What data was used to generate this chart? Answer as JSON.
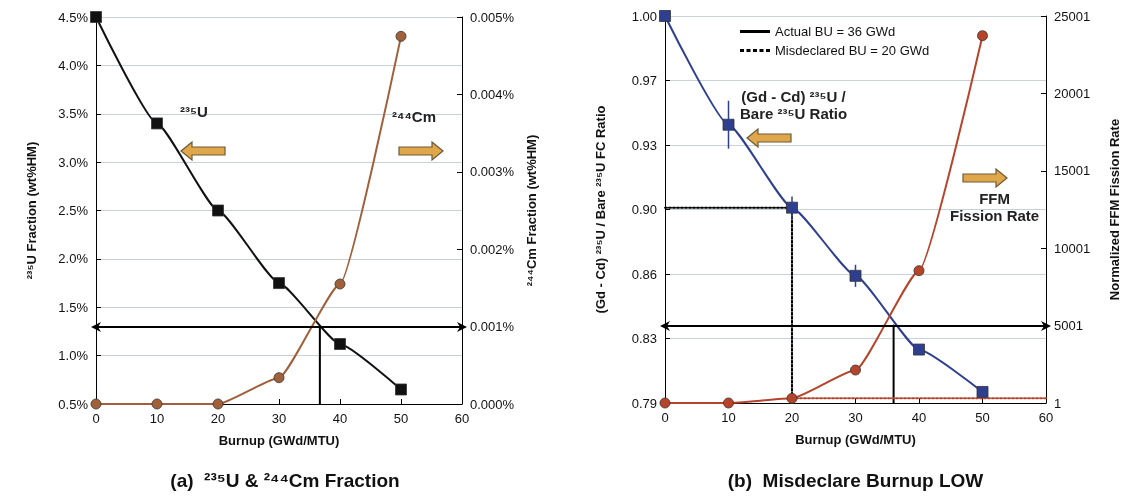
{
  "chart_data": [
    {
      "type": "line",
      "title": "(a)  ²³⁵U & ²⁴⁴Cm Fraction",
      "xlabel": "Burnup (GWd/MTU)",
      "ylabel": "²³⁵U Fraction (wt%HM)",
      "y2label": "²⁴⁴Cm Fraction (wt%HM)",
      "annotations": [
        "²³⁵U",
        "²⁴⁴Cm"
      ],
      "x": [
        0,
        10,
        20,
        30,
        40,
        50
      ],
      "xlim": [
        0,
        60
      ],
      "xticks": [
        0,
        10,
        20,
        30,
        40,
        50,
        60
      ],
      "ylim": [
        0.5,
        4.5
      ],
      "yticks": [
        {
          "value": 0.5,
          "label": "0.5%"
        },
        {
          "value": 1,
          "label": "1.0%"
        },
        {
          "value": 1.5,
          "label": "1.5%"
        },
        {
          "value": 2,
          "label": "2.0%"
        },
        {
          "value": 2.5,
          "label": "2.5%"
        },
        {
          "value": 3,
          "label": "3.0%"
        },
        {
          "value": 3.5,
          "label": "3.5%"
        },
        {
          "value": 4,
          "label": "4.0%"
        },
        {
          "value": 4.5,
          "label": "4.5%"
        }
      ],
      "y2lim": [
        0,
        0.005
      ],
      "y2ticks": [
        {
          "value": 0,
          "label": "0.000%"
        },
        {
          "value": 0.001,
          "label": "0.001%"
        },
        {
          "value": 0.002,
          "label": "0.002%"
        },
        {
          "value": 0.003,
          "label": "0.003%"
        },
        {
          "value": 0.004,
          "label": "0.004%"
        },
        {
          "value": 0.005,
          "label": "0.005%"
        }
      ],
      "grid": "y",
      "legend": false,
      "series": [
        {
          "color": "#111111",
          "marker": "square",
          "values": [
            4.5,
            3.4,
            2.5,
            1.75,
            1.12,
            0.65
          ]
        },
        {
          "color": "#a0603a",
          "marker": "circle",
          "axis": "y2",
          "values": [
            0,
            0,
            0,
            0.00034,
            0.00155,
            0.00475
          ]
        },
        {
          "color": "#000000",
          "marker": "none",
          "axis": "y2",
          "x": [
            36.7,
            36.7
          ],
          "values": [
            0,
            0.001
          ]
        }
      ],
      "ref_lines": [
        {
          "axis": "y2",
          "value": 0.001,
          "color": "#000000"
        }
      ]
    },
    {
      "type": "line",
      "title": "(b)  Misdeclare Burnup LOW",
      "xlabel": "Burnup (GWd/MTU)",
      "ylabel": "(Gd - Cd) ²³⁵U / Bare ²³⁵U FC Ratio",
      "y2label": "Normalized FFM Fission Rate",
      "annotations": [
        "(Gd - Cd) ²³⁵U /\nBare ²³⁵U Ratio",
        "FFM\nFission Rate"
      ],
      "x": [
        0,
        10,
        20,
        30,
        40,
        50
      ],
      "xlim": [
        0,
        60
      ],
      "xticks": [
        0,
        10,
        20,
        30,
        40,
        50,
        60
      ],
      "ylim": [
        0.79,
        1.0
      ],
      "yticks": [
        0.79,
        {
          "value": 0.825,
          "label": "0.83"
        },
        0.86,
        {
          "value": 0.895,
          "label": "0.90"
        },
        0.93,
        {
          "value": 0.965,
          "label": "0.97"
        },
        {
          "value": 1.0,
          "label": "1.00"
        }
      ],
      "y2lim": [
        1,
        25001
      ],
      "y2ticks": [
        1,
        5001,
        10001,
        15001,
        20001,
        25001
      ],
      "grid": "y",
      "legend": "top",
      "series": [
        {
          "color": "#2e3f8f",
          "marker": "square",
          "values": [
            1.0,
            0.941,
            0.896,
            0.859,
            0.819,
            0.796
          ],
          "errors": [
            null,
            0.013,
            0.006,
            0.006,
            0.003,
            null
          ]
        },
        {
          "color": "#b5442a",
          "marker": "circle",
          "axis": "y2",
          "values": [
            1,
            1,
            300,
            2130,
            8550,
            23730
          ]
        },
        {
          "name": "Actual BU = 36 GWd",
          "color": "#000000",
          "marker": "none",
          "line_style": "solid",
          "axis": "y2",
          "x": [
            36,
            36
          ],
          "values": [
            1,
            5001
          ]
        },
        {
          "name": "Misdeclared BU = 20 GWd",
          "color": "#000000",
          "marker": "none",
          "line_style": "dotted",
          "x": [
            0,
            20,
            20
          ],
          "values": [
            0.896,
            0.896,
            0.79
          ]
        },
        {
          "color": "#b5442a",
          "marker": "none",
          "line_style": "dotted",
          "axis": "y2",
          "x": [
            20,
            60
          ],
          "values": [
            300,
            300
          ]
        }
      ],
      "ref_lines": [
        {
          "axis": "y2",
          "value": 5001,
          "color": "#000000"
        }
      ]
    }
  ]
}
